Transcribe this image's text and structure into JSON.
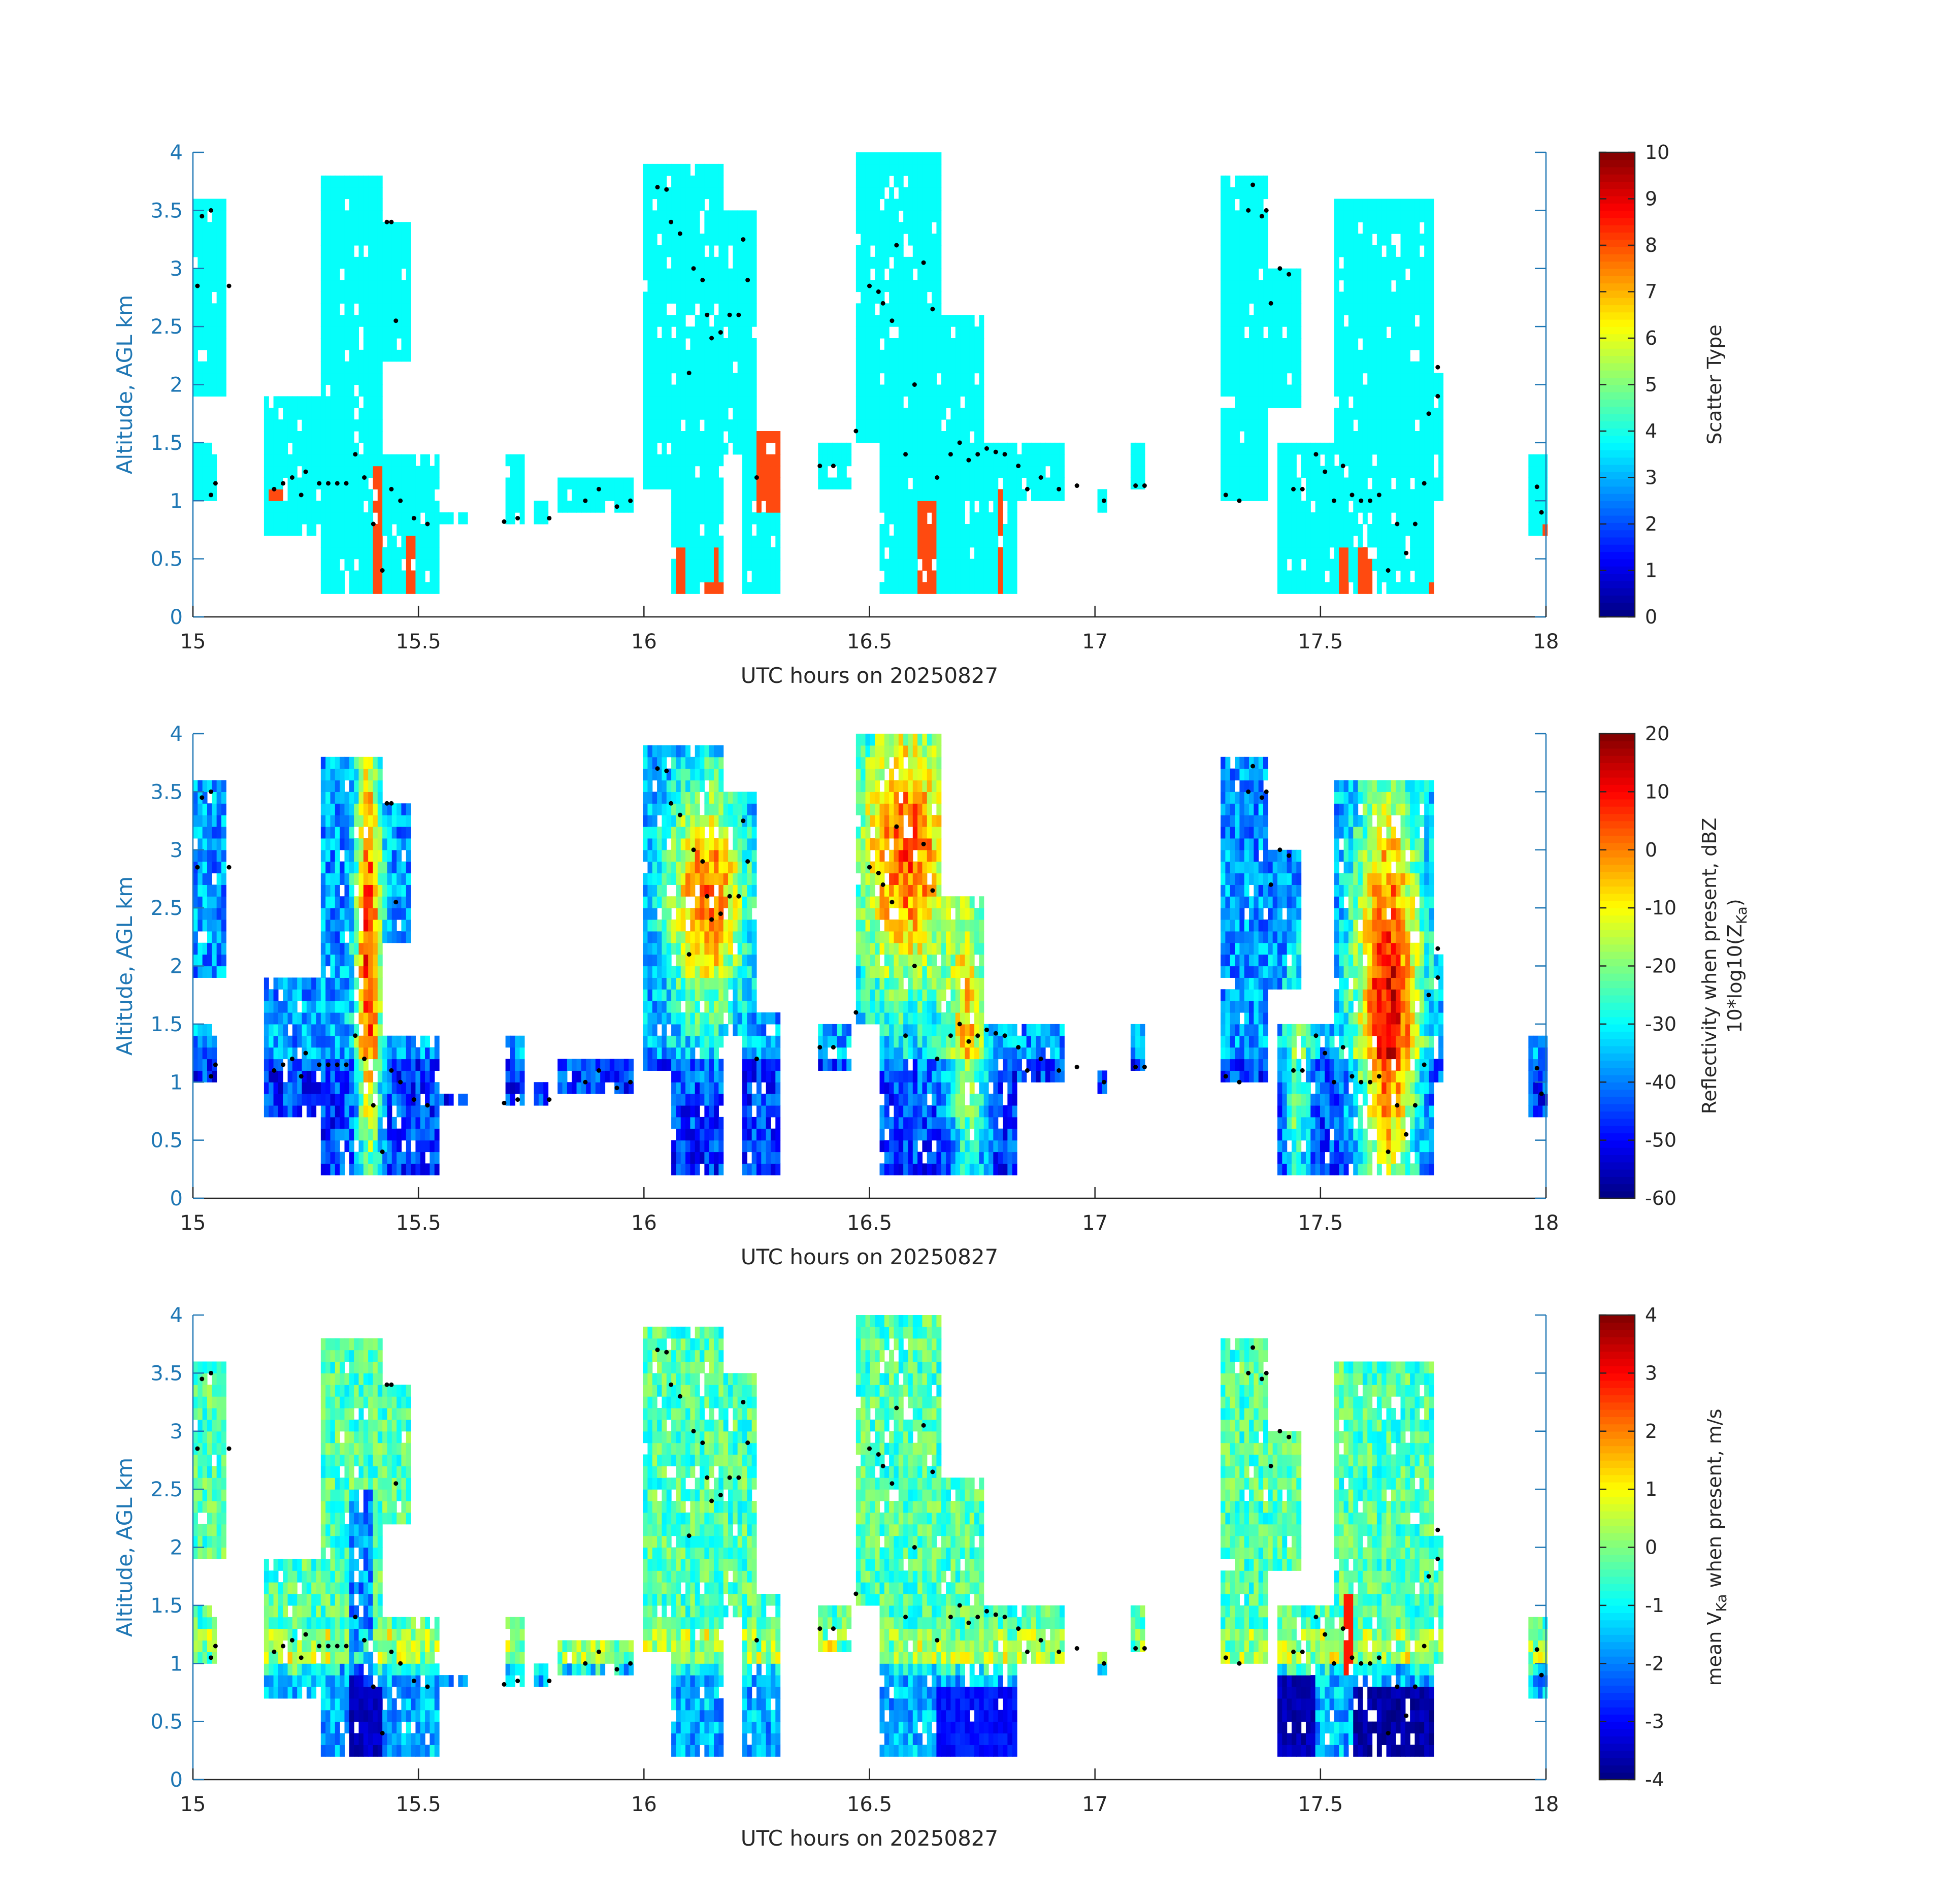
{
  "chart_data": [
    {
      "type": "heatmap",
      "xlabel": "UTC hours on 20250827",
      "ylabel": "Altitude, AGL km",
      "xlim": [
        15,
        18
      ],
      "ylim": [
        0,
        4
      ],
      "x_ticks": [
        "15",
        "15.5",
        "16",
        "16.5",
        "17",
        "17.5",
        "18"
      ],
      "y_ticks": [
        "0",
        "0.5",
        "1",
        "1.5",
        "2",
        "2.5",
        "3",
        "3.5",
        "4"
      ],
      "colorbar": {
        "label": "Scatter Type",
        "label_line2": "",
        "clim": [
          0,
          10
        ],
        "ticks": [
          "0",
          "1",
          "2",
          "3",
          "4",
          "5",
          "6",
          "7",
          "8",
          "9",
          "10"
        ],
        "colormap": "jet"
      },
      "dominant_value": 3.8,
      "secondary_value": 8.4,
      "secondary_color": "#ff4a10"
    },
    {
      "type": "heatmap",
      "xlabel": "UTC hours on 20250827",
      "ylabel": "Altitude, AGL km",
      "xlim": [
        15,
        18
      ],
      "ylim": [
        0,
        4
      ],
      "x_ticks": [
        "15",
        "15.5",
        "16",
        "16.5",
        "17",
        "17.5",
        "18"
      ],
      "y_ticks": [
        "0",
        "0.5",
        "1",
        "1.5",
        "2",
        "2.5",
        "3",
        "3.5",
        "4"
      ],
      "colorbar": {
        "label": "Reflectivity when present, dBZ",
        "label_line2_prefix": "10*log10(Z",
        "label_line2_sub": "Ka",
        "label_line2_suffix": ")",
        "clim": [
          -60,
          20
        ],
        "ticks": [
          "-60",
          "-50",
          "-40",
          "-30",
          "-20",
          "-10",
          "0",
          "10",
          "20"
        ],
        "colormap": "jet"
      }
    },
    {
      "type": "heatmap",
      "xlabel": "UTC hours on 20250827",
      "ylabel": "Altitude, AGL km",
      "xlim": [
        15,
        18
      ],
      "ylim": [
        0,
        4
      ],
      "x_ticks": [
        "15",
        "15.5",
        "16",
        "16.5",
        "17",
        "17.5",
        "18"
      ],
      "y_ticks": [
        "0",
        "0.5",
        "1",
        "1.5",
        "2",
        "2.5",
        "3",
        "3.5",
        "4"
      ],
      "colorbar": {
        "label_prefix": "mean V",
        "label_sub": "Ka",
        "label_suffix": " when present, m/s",
        "clim": [
          -4,
          4
        ],
        "ticks": [
          "-4",
          "-3",
          "-2",
          "-1",
          "0",
          "1",
          "2",
          "3",
          "4"
        ],
        "colormap": "jet"
      }
    }
  ],
  "cloud_columns": [
    {
      "t0": 15.0,
      "t1": 15.07,
      "bot": 1.9,
      "top": 3.6
    },
    {
      "t0": 15.0,
      "t1": 15.05,
      "bot": 1.0,
      "top": 1.5
    },
    {
      "t0": 15.16,
      "t1": 15.35,
      "bot": 0.7,
      "top": 1.9
    },
    {
      "t0": 15.28,
      "t1": 15.42,
      "bot": 0.2,
      "top": 3.8
    },
    {
      "t0": 15.42,
      "t1": 15.48,
      "bot": 2.2,
      "top": 3.4
    },
    {
      "t0": 15.42,
      "t1": 15.55,
      "bot": 0.2,
      "top": 1.4
    },
    {
      "t0": 15.55,
      "t1": 15.62,
      "bot": 0.8,
      "top": 0.95
    },
    {
      "t0": 15.69,
      "t1": 15.73,
      "bot": 0.8,
      "top": 1.4
    },
    {
      "t0": 15.76,
      "t1": 15.79,
      "bot": 0.8,
      "top": 1.0
    },
    {
      "t0": 15.81,
      "t1": 15.98,
      "bot": 0.9,
      "top": 1.25
    },
    {
      "t0": 16.0,
      "t1": 16.18,
      "bot": 1.1,
      "top": 3.9
    },
    {
      "t0": 16.18,
      "t1": 16.25,
      "bot": 1.4,
      "top": 3.5
    },
    {
      "t0": 16.06,
      "t1": 16.18,
      "bot": 0.2,
      "top": 1.4
    },
    {
      "t0": 16.22,
      "t1": 16.3,
      "bot": 0.2,
      "top": 1.6
    },
    {
      "t0": 16.39,
      "t1": 16.46,
      "bot": 1.1,
      "top": 1.5
    },
    {
      "t0": 16.47,
      "t1": 16.66,
      "bot": 1.5,
      "top": 4.0
    },
    {
      "t0": 16.52,
      "t1": 16.83,
      "bot": 0.2,
      "top": 1.5
    },
    {
      "t0": 16.66,
      "t1": 16.75,
      "bot": 1.3,
      "top": 2.6
    },
    {
      "t0": 16.83,
      "t1": 16.93,
      "bot": 1.0,
      "top": 1.5
    },
    {
      "t0": 17.01,
      "t1": 17.03,
      "bot": 0.95,
      "top": 1.1
    },
    {
      "t0": 17.08,
      "t1": 17.11,
      "bot": 1.05,
      "top": 1.5
    },
    {
      "t0": 17.28,
      "t1": 17.38,
      "bot": 1.0,
      "top": 3.8
    },
    {
      "t0": 17.38,
      "t1": 17.46,
      "bot": 1.8,
      "top": 3.0
    },
    {
      "t0": 17.4,
      "t1": 17.56,
      "bot": 0.2,
      "top": 1.5
    },
    {
      "t0": 17.53,
      "t1": 17.75,
      "bot": 0.2,
      "top": 3.6
    },
    {
      "t0": 17.75,
      "t1": 17.77,
      "bot": 1.0,
      "top": 2.1
    },
    {
      "t0": 17.96,
      "t1": 18.0,
      "bot": 0.7,
      "top": 1.4
    }
  ],
  "reflectivity_cores": [
    {
      "t": 15.39,
      "z": 2.0,
      "sx": 0.02,
      "sz": 1.6,
      "amp": 45
    },
    {
      "t": 16.14,
      "z": 2.6,
      "sx": 0.06,
      "sz": 0.7,
      "amp": 40
    },
    {
      "t": 16.58,
      "z": 3.0,
      "sx": 0.08,
      "sz": 0.9,
      "amp": 42
    },
    {
      "t": 16.72,
      "z": 1.3,
      "sx": 0.03,
      "sz": 0.9,
      "amp": 30
    },
    {
      "t": 17.45,
      "z": 0.9,
      "sx": 0.02,
      "sz": 0.7,
      "amp": 25
    },
    {
      "t": 17.65,
      "z": 1.6,
      "sx": 0.05,
      "sz": 1.4,
      "amp": 50
    }
  ],
  "velocity_fallstreaks": [
    {
      "t0": 15.35,
      "t1": 15.42,
      "bot": 0.2,
      "top": 0.8,
      "value": -3.8
    },
    {
      "t0": 16.65,
      "t1": 16.83,
      "bot": 0.2,
      "top": 0.8,
      "value": -3.2
    },
    {
      "t0": 17.4,
      "t1": 17.49,
      "bot": 0.2,
      "top": 0.9,
      "value": -3.9
    },
    {
      "t0": 17.57,
      "t1": 17.76,
      "bot": 0.2,
      "top": 0.8,
      "value": -4.0
    }
  ],
  "phase_points": [
    [
      15.01,
      2.85
    ],
    [
      15.02,
      3.45
    ],
    [
      15.04,
      3.5
    ],
    [
      15.08,
      2.85
    ],
    [
      15.04,
      1.05
    ],
    [
      15.05,
      1.15
    ],
    [
      15.18,
      1.1
    ],
    [
      15.2,
      1.15
    ],
    [
      15.22,
      1.2
    ],
    [
      15.24,
      1.05
    ],
    [
      15.25,
      1.25
    ],
    [
      15.28,
      1.15
    ],
    [
      15.3,
      1.15
    ],
    [
      15.32,
      1.15
    ],
    [
      15.34,
      1.15
    ],
    [
      15.36,
      1.4
    ],
    [
      15.38,
      1.2
    ],
    [
      15.4,
      0.8
    ],
    [
      15.42,
      0.4
    ],
    [
      15.43,
      3.4
    ],
    [
      15.44,
      3.4
    ],
    [
      15.45,
      2.55
    ],
    [
      15.44,
      1.1
    ],
    [
      15.46,
      1.0
    ],
    [
      15.49,
      0.85
    ],
    [
      15.52,
      0.8
    ],
    [
      15.69,
      0.82
    ],
    [
      15.72,
      0.85
    ],
    [
      15.79,
      0.85
    ],
    [
      15.87,
      1.0
    ],
    [
      15.9,
      1.1
    ],
    [
      15.94,
      0.95
    ],
    [
      15.97,
      1.0
    ],
    [
      16.03,
      3.7
    ],
    [
      16.05,
      3.68
    ],
    [
      16.06,
      3.4
    ],
    [
      16.08,
      3.3
    ],
    [
      16.1,
      2.1
    ],
    [
      16.11,
      3.0
    ],
    [
      16.13,
      2.9
    ],
    [
      16.14,
      2.6
    ],
    [
      16.15,
      2.4
    ],
    [
      16.17,
      2.45
    ],
    [
      16.19,
      2.6
    ],
    [
      16.21,
      2.6
    ],
    [
      16.22,
      3.25
    ],
    [
      16.23,
      2.9
    ],
    [
      16.25,
      1.2
    ],
    [
      16.39,
      1.3
    ],
    [
      16.42,
      1.3
    ],
    [
      16.47,
      1.6
    ],
    [
      16.5,
      2.85
    ],
    [
      16.52,
      2.8
    ],
    [
      16.53,
      2.7
    ],
    [
      16.55,
      2.55
    ],
    [
      16.56,
      3.2
    ],
    [
      16.58,
      1.4
    ],
    [
      16.6,
      2.0
    ],
    [
      16.62,
      3.05
    ],
    [
      16.64,
      2.65
    ],
    [
      16.65,
      1.2
    ],
    [
      16.68,
      1.4
    ],
    [
      16.7,
      1.5
    ],
    [
      16.72,
      1.35
    ],
    [
      16.74,
      1.4
    ],
    [
      16.76,
      1.45
    ],
    [
      16.78,
      1.42
    ],
    [
      16.8,
      1.4
    ],
    [
      16.83,
      1.3
    ],
    [
      16.85,
      1.1
    ],
    [
      16.88,
      1.2
    ],
    [
      16.92,
      1.1
    ],
    [
      16.96,
      1.13
    ],
    [
      17.02,
      1.0
    ],
    [
      17.09,
      1.13
    ],
    [
      17.11,
      1.13
    ],
    [
      17.29,
      1.05
    ],
    [
      17.32,
      1.0
    ],
    [
      17.34,
      3.5
    ],
    [
      17.35,
      3.72
    ],
    [
      17.37,
      3.45
    ],
    [
      17.38,
      3.5
    ],
    [
      17.39,
      2.7
    ],
    [
      17.41,
      3.0
    ],
    [
      17.43,
      2.95
    ],
    [
      17.44,
      1.1
    ],
    [
      17.46,
      1.1
    ],
    [
      17.49,
      1.4
    ],
    [
      17.51,
      1.25
    ],
    [
      17.53,
      1.0
    ],
    [
      17.55,
      1.3
    ],
    [
      17.57,
      1.05
    ],
    [
      17.59,
      1.0
    ],
    [
      17.61,
      1.0
    ],
    [
      17.63,
      1.05
    ],
    [
      17.65,
      0.4
    ],
    [
      17.67,
      0.8
    ],
    [
      17.69,
      0.55
    ],
    [
      17.71,
      0.8
    ],
    [
      17.73,
      1.15
    ],
    [
      17.74,
      1.75
    ],
    [
      17.76,
      1.9
    ],
    [
      17.76,
      2.15
    ],
    [
      17.98,
      1.12
    ],
    [
      17.99,
      0.9
    ]
  ]
}
